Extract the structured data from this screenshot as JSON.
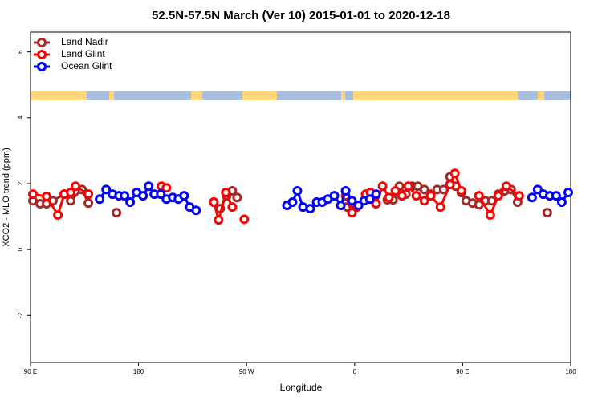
{
  "chart_data": {
    "type": "line",
    "title": "52.5N-57.5N March (Ver 10)   2015-01-01 to 2020-12-18",
    "x_label": "Longitude",
    "y_label": "XCO2 - MLO trend (ppm)",
    "xlim": [
      90,
      540
    ],
    "ylim": [
      -3.43,
      6.6
    ],
    "xticks": [
      {
        "value": 90,
        "label": "90 E"
      },
      180,
      {
        "value": 270,
        "label": "90 W"
      },
      {
        "value": 360,
        "label": "0"
      },
      {
        "value": 450,
        "label": "90 E"
      },
      {
        "value": 540,
        "label": "180"
      }
    ],
    "yticks": [
      -2,
      0,
      2,
      4,
      6
    ],
    "grid": false,
    "legend": "top-left",
    "series": [
      {
        "name": "Land Nadir",
        "color": "#a52a2a",
        "x": [
          92,
          98,
          103.4,
          108.7,
          118.1,
          123.5,
          132.9,
          138.2,
          null,
          161.6,
          null,
          242.7,
          248,
          253.4,
          258.1,
          262.1,
          null,
          353.8,
          null,
          387.3,
          392,
          397.3,
          402.7,
          408,
          412.7,
          418.1,
          423.4,
          428.8,
          434.2,
          439.5,
          444.2,
          448.9,
          452.9,
          458.3,
          463.6,
          469,
          474.3,
          479.7,
          485,
          490.4,
          495.8,
          null,
          520.5
        ],
        "values": [
          1.48,
          1.39,
          1.39,
          1.48,
          1.68,
          1.48,
          1.82,
          1.41,
          null,
          1.12,
          null,
          1.44,
          1.24,
          1.63,
          1.78,
          1.58,
          null,
          1.29,
          null,
          1.51,
          1.51,
          1.92,
          1.68,
          1.92,
          1.92,
          1.82,
          1.68,
          1.82,
          1.82,
          2.21,
          1.92,
          1.73,
          1.48,
          1.41,
          1.36,
          1.48,
          1.48,
          1.68,
          1.78,
          1.82,
          1.44,
          null,
          1.12
        ]
      },
      {
        "name": "Land Glint",
        "color": "#ff0000",
        "x": [
          92,
          103.4,
          112.8,
          118.1,
          123.5,
          127.5,
          138.2,
          null,
          199.1,
          203.2,
          null,
          242.7,
          246.7,
          252.7,
          258.1,
          null,
          268.1,
          null,
          352.5,
          357.8,
          361.9,
          369.2,
          373.2,
          377.9,
          383.3,
          388.6,
          394,
          399.4,
          404.7,
          411.4,
          418.1,
          423.4,
          431.5,
          439.5,
          443.5,
          448.9,
          null,
          463.6,
          473,
          479.7,
          486.4,
          497.1
        ],
        "values": [
          1.68,
          1.61,
          1.05,
          1.68,
          1.73,
          1.92,
          1.68,
          null,
          1.92,
          1.87,
          null,
          1.44,
          0.9,
          1.73,
          1.29,
          null,
          0.92,
          null,
          1.63,
          1.12,
          1.29,
          1.68,
          1.73,
          1.39,
          1.92,
          1.58,
          1.78,
          1.63,
          1.92,
          1.63,
          1.48,
          1.63,
          1.29,
          1.97,
          2.31,
          1.78,
          null,
          1.63,
          1.05,
          1.63,
          1.92,
          1.63
        ]
      },
      {
        "name": "Ocean Glint",
        "color": "#0000ff",
        "x": [
          147.6,
          153,
          158.3,
          163.7,
          168.3,
          173,
          178.4,
          183.7,
          188.4,
          193.1,
          198.5,
          203.2,
          208.5,
          213.2,
          217.9,
          222.6,
          228,
          null,
          303.6,
          308.3,
          312.3,
          317,
          323,
          328.4,
          333.1,
          337.7,
          343.1,
          348.5,
          352.5,
          357.8,
          363.2,
          367.9,
          372.6,
          377.9,
          null,
          507.8,
          512.5,
          517.2,
          522.6,
          527.9,
          532.6,
          538
        ],
        "values": [
          1.53,
          1.82,
          1.68,
          1.63,
          1.63,
          1.44,
          1.73,
          1.63,
          1.92,
          1.68,
          1.68,
          1.53,
          1.58,
          1.53,
          1.63,
          1.29,
          1.19,
          null,
          1.34,
          1.44,
          1.78,
          1.29,
          1.24,
          1.44,
          1.44,
          1.53,
          1.63,
          1.34,
          1.78,
          1.48,
          1.34,
          1.48,
          1.53,
          1.68,
          null,
          1.58,
          1.82,
          1.68,
          1.63,
          1.63,
          1.44,
          1.73
        ]
      }
    ]
  }
}
